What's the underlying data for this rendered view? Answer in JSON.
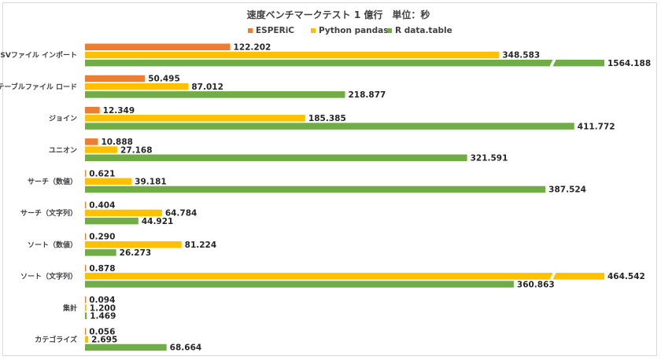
{
  "chart_data": {
    "type": "bar",
    "orientation": "horizontal",
    "title": "速度ベンチマークテスト 1 億行　単位：秒",
    "categories": [
      "CSVファイル インポート",
      "テーブルファイル ロード",
      "ジョイン",
      "ユニオン",
      "サーチ（数値）",
      "サーチ（文字列）",
      "ソート（数値）",
      "ソート（文字列）",
      "集計",
      "カテゴライズ"
    ],
    "series": [
      {
        "name": "ESPERiC",
        "color": "#ed7d31",
        "values": [
          122.202,
          50.495,
          12.349,
          10.888,
          0.621,
          0.404,
          0.29,
          0.878,
          0.094,
          0.056
        ]
      },
      {
        "name": "Python pandas",
        "color": "#ffc000",
        "values": [
          348.583,
          87.012,
          185.385,
          27.168,
          39.181,
          64.784,
          81.224,
          464.542,
          1.2,
          2.695
        ]
      },
      {
        "name": "R data.table",
        "color": "#70ad47",
        "values": [
          1564.188,
          218.877,
          411.772,
          321.591,
          387.524,
          44.921,
          26.273,
          360.863,
          1.469,
          68.664
        ]
      }
    ],
    "value_labels": [
      [
        "122.202",
        "50.495",
        "12.349",
        "10.888",
        "0.621",
        "0.404",
        "0.290",
        "0.878",
        "0.094",
        "0.056"
      ],
      [
        "348.583",
        "87.012",
        "185.385",
        "27.168",
        "39.181",
        "64.784",
        "81.224",
        "464.542",
        "1.200",
        "2.695"
      ],
      [
        "1564.188",
        "218.877",
        "411.772",
        "321.591",
        "387.524",
        "44.921",
        "26.273",
        "360.863",
        "1.469",
        "68.664"
      ]
    ],
    "axis_broken": true,
    "legend_position": "top",
    "grid": false
  }
}
